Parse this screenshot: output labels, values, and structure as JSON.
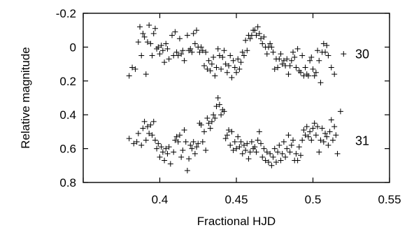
{
  "chart_data": {
    "type": "scatter",
    "title": "",
    "xlabel": "Fractional HJD",
    "ylabel": "Relative magnitude",
    "xlim": [
      0.35,
      0.55
    ],
    "ylim": [
      -0.2,
      0.8
    ],
    "y_inverted": true,
    "xticks": [
      "0.4",
      "0.45",
      "0.5",
      "0.55"
    ],
    "yticks": [
      "-0.2",
      "0",
      "0.2",
      "0.4",
      "0.6",
      "0.8"
    ],
    "grid": false,
    "legend": "none",
    "marker": "plus",
    "mark_color": "#000000",
    "series": [
      {
        "name": "30",
        "points": [
          [
            0.38,
            0.17
          ],
          [
            0.382,
            0.12
          ],
          [
            0.384,
            0.13
          ],
          [
            0.386,
            -0.03
          ],
          [
            0.387,
            -0.12
          ],
          [
            0.388,
            0.05
          ],
          [
            0.389,
            -0.08
          ],
          [
            0.39,
            -0.06
          ],
          [
            0.391,
            0.16
          ],
          [
            0.392,
            -0.03
          ],
          [
            0.393,
            -0.13
          ],
          [
            0.394,
            -0.02
          ],
          [
            0.395,
            0.05
          ],
          [
            0.396,
            -0.08
          ],
          [
            0.397,
            -0.11
          ],
          [
            0.398,
            0.01
          ],
          [
            0.399,
            0.0
          ],
          [
            0.4,
            0.04
          ],
          [
            0.401,
            -0.01
          ],
          [
            0.402,
            0.02
          ],
          [
            0.403,
            0.09
          ],
          [
            0.404,
            -0.02
          ],
          [
            0.405,
            0.01
          ],
          [
            0.406,
            0.07
          ],
          [
            0.408,
            -0.07
          ],
          [
            0.409,
            0.05
          ],
          [
            0.41,
            -0.09
          ],
          [
            0.411,
            0.03
          ],
          [
            0.412,
            0.05
          ],
          [
            0.413,
            -0.05
          ],
          [
            0.414,
            0.04
          ],
          [
            0.415,
            0.02
          ],
          [
            0.416,
            0.08
          ],
          [
            0.418,
            -0.07
          ],
          [
            0.419,
            0.02
          ],
          [
            0.42,
            0.01
          ],
          [
            0.421,
            0.03
          ],
          [
            0.422,
            -0.08
          ],
          [
            0.423,
            -0.02
          ],
          [
            0.424,
            -0.1
          ],
          [
            0.425,
            0.0
          ],
          [
            0.426,
            0.03
          ],
          [
            0.427,
            0.0
          ],
          [
            0.428,
            0.02
          ],
          [
            0.429,
            0.11
          ],
          [
            0.43,
            0.03
          ],
          [
            0.431,
            0.13
          ],
          [
            0.432,
            0.08
          ],
          [
            0.433,
            0.14
          ],
          [
            0.434,
            0.1
          ],
          [
            0.435,
            0.06
          ],
          [
            0.436,
            0.17
          ],
          [
            0.437,
            0.12
          ],
          [
            0.438,
            0.01
          ],
          [
            0.439,
            0.05
          ],
          [
            0.44,
            0.13
          ],
          [
            0.441,
            0.06
          ],
          [
            0.442,
            0.02
          ],
          [
            0.443,
            0.1
          ],
          [
            0.444,
            0.15
          ],
          [
            0.445,
            0.11
          ],
          [
            0.446,
            0.05
          ],
          [
            0.447,
            0.18
          ],
          [
            0.448,
            0.08
          ],
          [
            0.449,
            0.12
          ],
          [
            0.45,
            0.15
          ],
          [
            0.451,
            0.07
          ],
          [
            0.452,
            0.13
          ],
          [
            0.453,
            0.09
          ],
          [
            0.454,
            0.03
          ],
          [
            0.455,
            0.05
          ],
          [
            0.456,
            -0.04
          ],
          [
            0.457,
            0.02
          ],
          [
            0.458,
            -0.07
          ],
          [
            0.459,
            -0.05
          ],
          [
            0.46,
            -0.07
          ],
          [
            0.461,
            -0.1
          ],
          [
            0.462,
            -0.1
          ],
          [
            0.463,
            -0.07
          ],
          [
            0.464,
            -0.12
          ],
          [
            0.465,
            -0.08
          ],
          [
            0.466,
            -0.05
          ],
          [
            0.467,
            -0.02
          ],
          [
            0.468,
            -0.06
          ],
          [
            0.469,
            0.0
          ],
          [
            0.47,
            0.04
          ],
          [
            0.471,
            0.0
          ],
          [
            0.472,
            -0.02
          ],
          [
            0.473,
            0.0
          ],
          [
            0.474,
            0.03
          ],
          [
            0.475,
            0.13
          ],
          [
            0.476,
            0.07
          ],
          [
            0.477,
            0.12
          ],
          [
            0.478,
            0.07
          ],
          [
            0.479,
            0.04
          ],
          [
            0.48,
            0.1
          ],
          [
            0.481,
            0.08
          ],
          [
            0.482,
            0.11
          ],
          [
            0.483,
            0.07
          ],
          [
            0.484,
            0.16
          ],
          [
            0.485,
            0.11
          ],
          [
            0.486,
            0.08
          ],
          [
            0.487,
            0.03
          ],
          [
            0.488,
            0.06
          ],
          [
            0.489,
            0.12
          ],
          [
            0.49,
            0.01
          ],
          [
            0.491,
            0.14
          ],
          [
            0.492,
            0.15
          ],
          [
            0.493,
            0.05
          ],
          [
            0.494,
            0.17
          ],
          [
            0.495,
            0.12
          ],
          [
            0.496,
            0.16
          ],
          [
            0.497,
            0.17
          ],
          [
            0.498,
            0.08
          ],
          [
            0.499,
            0.06
          ],
          [
            0.5,
            0.13
          ],
          [
            0.501,
            0.17
          ],
          [
            0.502,
            0.15
          ],
          [
            0.503,
            0.02
          ],
          [
            0.504,
            0.08
          ],
          [
            0.505,
            0.21
          ],
          [
            0.506,
            0.03
          ],
          [
            0.507,
            -0.02
          ],
          [
            0.508,
            0.03
          ],
          [
            0.509,
            -0.01
          ],
          [
            0.51,
            0.05
          ],
          [
            0.512,
            0.12
          ],
          [
            0.514,
            0.16
          ],
          [
            0.52,
            0.04
          ]
        ]
      },
      {
        "name": "31",
        "points": [
          [
            0.38,
            0.54
          ],
          [
            0.383,
            0.57
          ],
          [
            0.385,
            0.56
          ],
          [
            0.386,
            0.51
          ],
          [
            0.388,
            0.58
          ],
          [
            0.389,
            0.48
          ],
          [
            0.39,
            0.44
          ],
          [
            0.391,
            0.55
          ],
          [
            0.392,
            0.47
          ],
          [
            0.393,
            0.51
          ],
          [
            0.394,
            0.46
          ],
          [
            0.395,
            0.52
          ],
          [
            0.396,
            0.44
          ],
          [
            0.397,
            0.55
          ],
          [
            0.398,
            0.6
          ],
          [
            0.399,
            0.57
          ],
          [
            0.4,
            0.65
          ],
          [
            0.401,
            0.59
          ],
          [
            0.402,
            0.62
          ],
          [
            0.403,
            0.67
          ],
          [
            0.404,
            0.6
          ],
          [
            0.405,
            0.63
          ],
          [
            0.406,
            0.59
          ],
          [
            0.407,
            0.69
          ],
          [
            0.409,
            0.62
          ],
          [
            0.41,
            0.55
          ],
          [
            0.411,
            0.53
          ],
          [
            0.412,
            0.56
          ],
          [
            0.413,
            0.52
          ],
          [
            0.414,
            0.65
          ],
          [
            0.415,
            0.61
          ],
          [
            0.416,
            0.49
          ],
          [
            0.417,
            0.56
          ],
          [
            0.418,
            0.73
          ],
          [
            0.419,
            0.66
          ],
          [
            0.42,
            0.58
          ],
          [
            0.421,
            0.6
          ],
          [
            0.422,
            0.56
          ],
          [
            0.423,
            0.63
          ],
          [
            0.424,
            0.59
          ],
          [
            0.425,
            0.57
          ],
          [
            0.426,
            0.45
          ],
          [
            0.427,
            0.46
          ],
          [
            0.428,
            0.56
          ],
          [
            0.429,
            0.5
          ],
          [
            0.43,
            0.61
          ],
          [
            0.431,
            0.42
          ],
          [
            0.432,
            0.45
          ],
          [
            0.433,
            0.48
          ],
          [
            0.434,
            0.44
          ],
          [
            0.435,
            0.4
          ],
          [
            0.436,
            0.42
          ],
          [
            0.437,
            0.35
          ],
          [
            0.438,
            0.3
          ],
          [
            0.439,
            0.34
          ],
          [
            0.44,
            0.4
          ],
          [
            0.441,
            0.37
          ],
          [
            0.442,
            0.38
          ],
          [
            0.443,
            0.54
          ],
          [
            0.444,
            0.52
          ],
          [
            0.445,
            0.49
          ],
          [
            0.446,
            0.58
          ],
          [
            0.447,
            0.5
          ],
          [
            0.448,
            0.61
          ],
          [
            0.449,
            0.56
          ],
          [
            0.45,
            0.6
          ],
          [
            0.451,
            0.53
          ],
          [
            0.452,
            0.59
          ],
          [
            0.453,
            0.56
          ],
          [
            0.454,
            0.63
          ],
          [
            0.455,
            0.58
          ],
          [
            0.456,
            0.61
          ],
          [
            0.457,
            0.57
          ],
          [
            0.458,
            0.66
          ],
          [
            0.459,
            0.62
          ],
          [
            0.46,
            0.56
          ],
          [
            0.461,
            0.6
          ],
          [
            0.462,
            0.59
          ],
          [
            0.463,
            0.62
          ],
          [
            0.464,
            0.55
          ],
          [
            0.465,
            0.5
          ],
          [
            0.466,
            0.57
          ],
          [
            0.467,
            0.65
          ],
          [
            0.468,
            0.6
          ],
          [
            0.469,
            0.67
          ],
          [
            0.47,
            0.62
          ],
          [
            0.471,
            0.68
          ],
          [
            0.472,
            0.63
          ],
          [
            0.473,
            0.7
          ],
          [
            0.474,
            0.65
          ],
          [
            0.475,
            0.6
          ],
          [
            0.476,
            0.68
          ],
          [
            0.477,
            0.62
          ],
          [
            0.478,
            0.58
          ],
          [
            0.479,
            0.67
          ],
          [
            0.48,
            0.63
          ],
          [
            0.481,
            0.56
          ],
          [
            0.482,
            0.65
          ],
          [
            0.483,
            0.6
          ],
          [
            0.484,
            0.52
          ],
          [
            0.485,
            0.62
          ],
          [
            0.486,
            0.58
          ],
          [
            0.487,
            0.55
          ],
          [
            0.488,
            0.67
          ],
          [
            0.489,
            0.63
          ],
          [
            0.49,
            0.67
          ],
          [
            0.491,
            0.59
          ],
          [
            0.492,
            0.64
          ],
          [
            0.493,
            0.55
          ],
          [
            0.494,
            0.49
          ],
          [
            0.495,
            0.52
          ],
          [
            0.496,
            0.47
          ],
          [
            0.497,
            0.53
          ],
          [
            0.498,
            0.5
          ],
          [
            0.499,
            0.55
          ],
          [
            0.5,
            0.48
          ],
          [
            0.501,
            0.45
          ],
          [
            0.502,
            0.52
          ],
          [
            0.503,
            0.47
          ],
          [
            0.504,
            0.62
          ],
          [
            0.505,
            0.55
          ],
          [
            0.506,
            0.48
          ],
          [
            0.507,
            0.56
          ],
          [
            0.508,
            0.51
          ],
          [
            0.509,
            0.53
          ],
          [
            0.51,
            0.58
          ],
          [
            0.511,
            0.5
          ],
          [
            0.512,
            0.43
          ],
          [
            0.513,
            0.55
          ],
          [
            0.514,
            0.47
          ],
          [
            0.515,
            0.52
          ],
          [
            0.516,
            0.63
          ],
          [
            0.518,
            0.38
          ]
        ]
      }
    ]
  }
}
